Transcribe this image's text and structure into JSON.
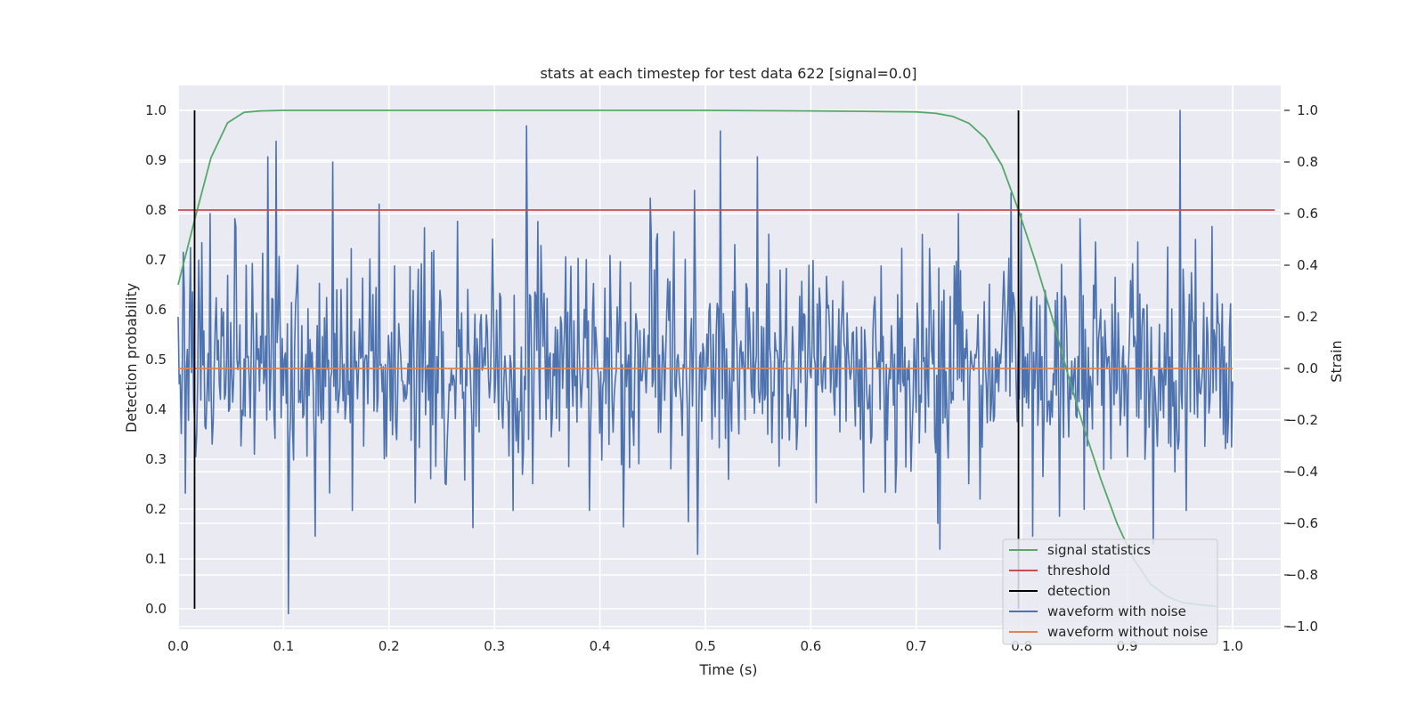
{
  "chart_data": {
    "type": "line",
    "title": "stats at each timestep for test data 622 [signal=0.0]",
    "xlabel": "Time (s)",
    "ylabel": "Detection probability",
    "y2label": "Strain",
    "xlim": [
      0.0,
      1.05
    ],
    "ylim": [
      -0.045,
      1.045
    ],
    "y2lim": [
      -1.06,
      1.06
    ],
    "xticks": [
      0.0,
      0.1,
      0.2,
      0.3,
      0.4,
      0.5,
      0.6,
      0.7,
      0.8,
      0.9,
      1.0
    ],
    "yticks": [
      0.0,
      0.1,
      0.2,
      0.3,
      0.4,
      0.5,
      0.6,
      0.7,
      0.8,
      0.9,
      1.0
    ],
    "y2ticks": [
      -1.0,
      -0.8,
      -0.6,
      -0.4,
      -0.2,
      0.0,
      0.2,
      0.4,
      0.6,
      0.8,
      1.0
    ],
    "grid": true,
    "legend_position": "lower-right",
    "background_color": "#eaeaf2",
    "series": [
      {
        "name": "signal statistics",
        "axis": "left",
        "color": "#55a868",
        "x": [
          0.0,
          0.0156,
          0.0312,
          0.0469,
          0.0625,
          0.0781,
          0.1,
          0.2,
          0.3,
          0.4,
          0.5,
          0.6,
          0.65,
          0.7,
          0.7188,
          0.7344,
          0.75,
          0.7656,
          0.7812,
          0.7969,
          0.8125,
          0.8281,
          0.8438,
          0.8594,
          0.875,
          0.8906,
          0.9062,
          0.9219,
          0.9375,
          0.9531,
          0.9688,
          0.9844
        ],
        "values": [
          0.65,
          0.78,
          0.905,
          0.975,
          0.996,
          0.999,
          1.0,
          1.0,
          1.0,
          1.0,
          1.0,
          0.999,
          0.998,
          0.997,
          0.994,
          0.988,
          0.974,
          0.944,
          0.89,
          0.8,
          0.7,
          0.59,
          0.47,
          0.36,
          0.26,
          0.17,
          0.1,
          0.05,
          0.025,
          0.012,
          0.008,
          0.005
        ]
      },
      {
        "name": "threshold",
        "axis": "left",
        "color": "#c44e52",
        "x": [
          0.0,
          1.04
        ],
        "values": [
          0.8,
          0.8
        ]
      },
      {
        "name": "detection",
        "axis": "left",
        "color": "#000000",
        "segments": [
          {
            "x": 0.0156,
            "y": [
              0.0,
              1.0
            ]
          },
          {
            "x": 0.7969,
            "y": [
              0.0,
              1.0
            ]
          }
        ]
      },
      {
        "name": "waveform with noise",
        "axis": "right",
        "color": "#4c72b0",
        "x": [
          0.0,
          1.0
        ],
        "n_points": 1024,
        "noise_std": 0.2,
        "peaks": [
          {
            "x": 0.0,
            "y": 0.2
          },
          {
            "x": 0.005,
            "y": 0.45
          },
          {
            "x": 0.02,
            "y": 0.42
          },
          {
            "x": 0.03,
            "y": 0.6
          },
          {
            "x": 0.054,
            "y": 0.58
          },
          {
            "x": 0.065,
            "y": 0.4
          },
          {
            "x": 0.085,
            "y": 0.82
          },
          {
            "x": 0.093,
            "y": 0.88
          },
          {
            "x": 0.105,
            "y": -0.95
          },
          {
            "x": 0.13,
            "y": -0.65
          },
          {
            "x": 0.147,
            "y": 0.8
          },
          {
            "x": 0.165,
            "y": -0.55
          },
          {
            "x": 0.175,
            "y": 0.35
          },
          {
            "x": 0.225,
            "y": -0.52
          },
          {
            "x": 0.24,
            "y": 0.45
          },
          {
            "x": 0.254,
            "y": -0.45
          },
          {
            "x": 0.265,
            "y": 0.57
          },
          {
            "x": 0.318,
            "y": -0.55
          },
          {
            "x": 0.33,
            "y": 0.94
          },
          {
            "x": 0.37,
            "y": -0.38
          },
          {
            "x": 0.39,
            "y": -0.55
          },
          {
            "x": 0.448,
            "y": 0.66
          },
          {
            "x": 0.47,
            "y": 0.53
          },
          {
            "x": 0.49,
            "y": 0.69
          },
          {
            "x": 0.493,
            "y": -0.72
          },
          {
            "x": 0.514,
            "y": 0.92
          },
          {
            "x": 0.528,
            "y": 0.48
          },
          {
            "x": 0.549,
            "y": 0.82
          },
          {
            "x": 0.56,
            "y": 0.52
          },
          {
            "x": 0.605,
            "y": -0.52
          },
          {
            "x": 0.68,
            "y": -0.48
          },
          {
            "x": 0.72,
            "y": -0.6
          },
          {
            "x": 0.74,
            "y": 0.6
          },
          {
            "x": 0.79,
            "y": 0.68
          },
          {
            "x": 0.8,
            "y": 0.6
          },
          {
            "x": 0.81,
            "y": -0.65
          },
          {
            "x": 0.855,
            "y": 0.58
          },
          {
            "x": 0.87,
            "y": 0.49
          },
          {
            "x": 0.885,
            "y": -0.35
          },
          {
            "x": 0.91,
            "y": 0.49
          },
          {
            "x": 0.925,
            "y": -0.68
          },
          {
            "x": 0.95,
            "y": 1.0
          },
          {
            "x": 0.956,
            "y": -0.55
          },
          {
            "x": 0.965,
            "y": 0.5
          },
          {
            "x": 0.98,
            "y": 0.55
          },
          {
            "x": 0.99,
            "y": 0.25
          },
          {
            "x": 1.0,
            "y": -0.05
          }
        ]
      },
      {
        "name": "waveform without noise",
        "axis": "right",
        "color": "#dd8452",
        "x": [
          0.0,
          1.0
        ],
        "values": [
          0.0,
          0.0
        ]
      }
    ]
  }
}
